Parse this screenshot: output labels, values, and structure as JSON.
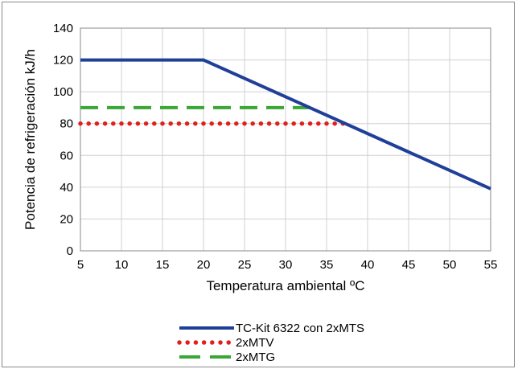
{
  "chart_data": {
    "type": "line",
    "title": "",
    "xlabel": "Temperatura ambiental ºC",
    "ylabel": "Potencia de refrigeración kJ/h",
    "xlim": [
      5,
      55
    ],
    "ylim": [
      0,
      140
    ],
    "xticks": [
      5,
      10,
      15,
      20,
      25,
      30,
      35,
      40,
      45,
      50,
      55
    ],
    "yticks": [
      0,
      20,
      40,
      60,
      80,
      100,
      120,
      140
    ],
    "grid": true,
    "legend_position": "bottom",
    "series": [
      {
        "name": "TC-Kit 6322 con 2xMTS",
        "color": "#1f3f99",
        "style": "solid",
        "points": [
          [
            5,
            120
          ],
          [
            20,
            120
          ],
          [
            55,
            39
          ]
        ]
      },
      {
        "name": "2xMTV",
        "color": "#e0201b",
        "style": "dotted",
        "points": [
          [
            5,
            80
          ],
          [
            37.5,
            80
          ]
        ]
      },
      {
        "name": "2xMTG",
        "color": "#3aa635",
        "style": "dashed",
        "points": [
          [
            5,
            90
          ],
          [
            33.5,
            90
          ]
        ]
      }
    ]
  }
}
